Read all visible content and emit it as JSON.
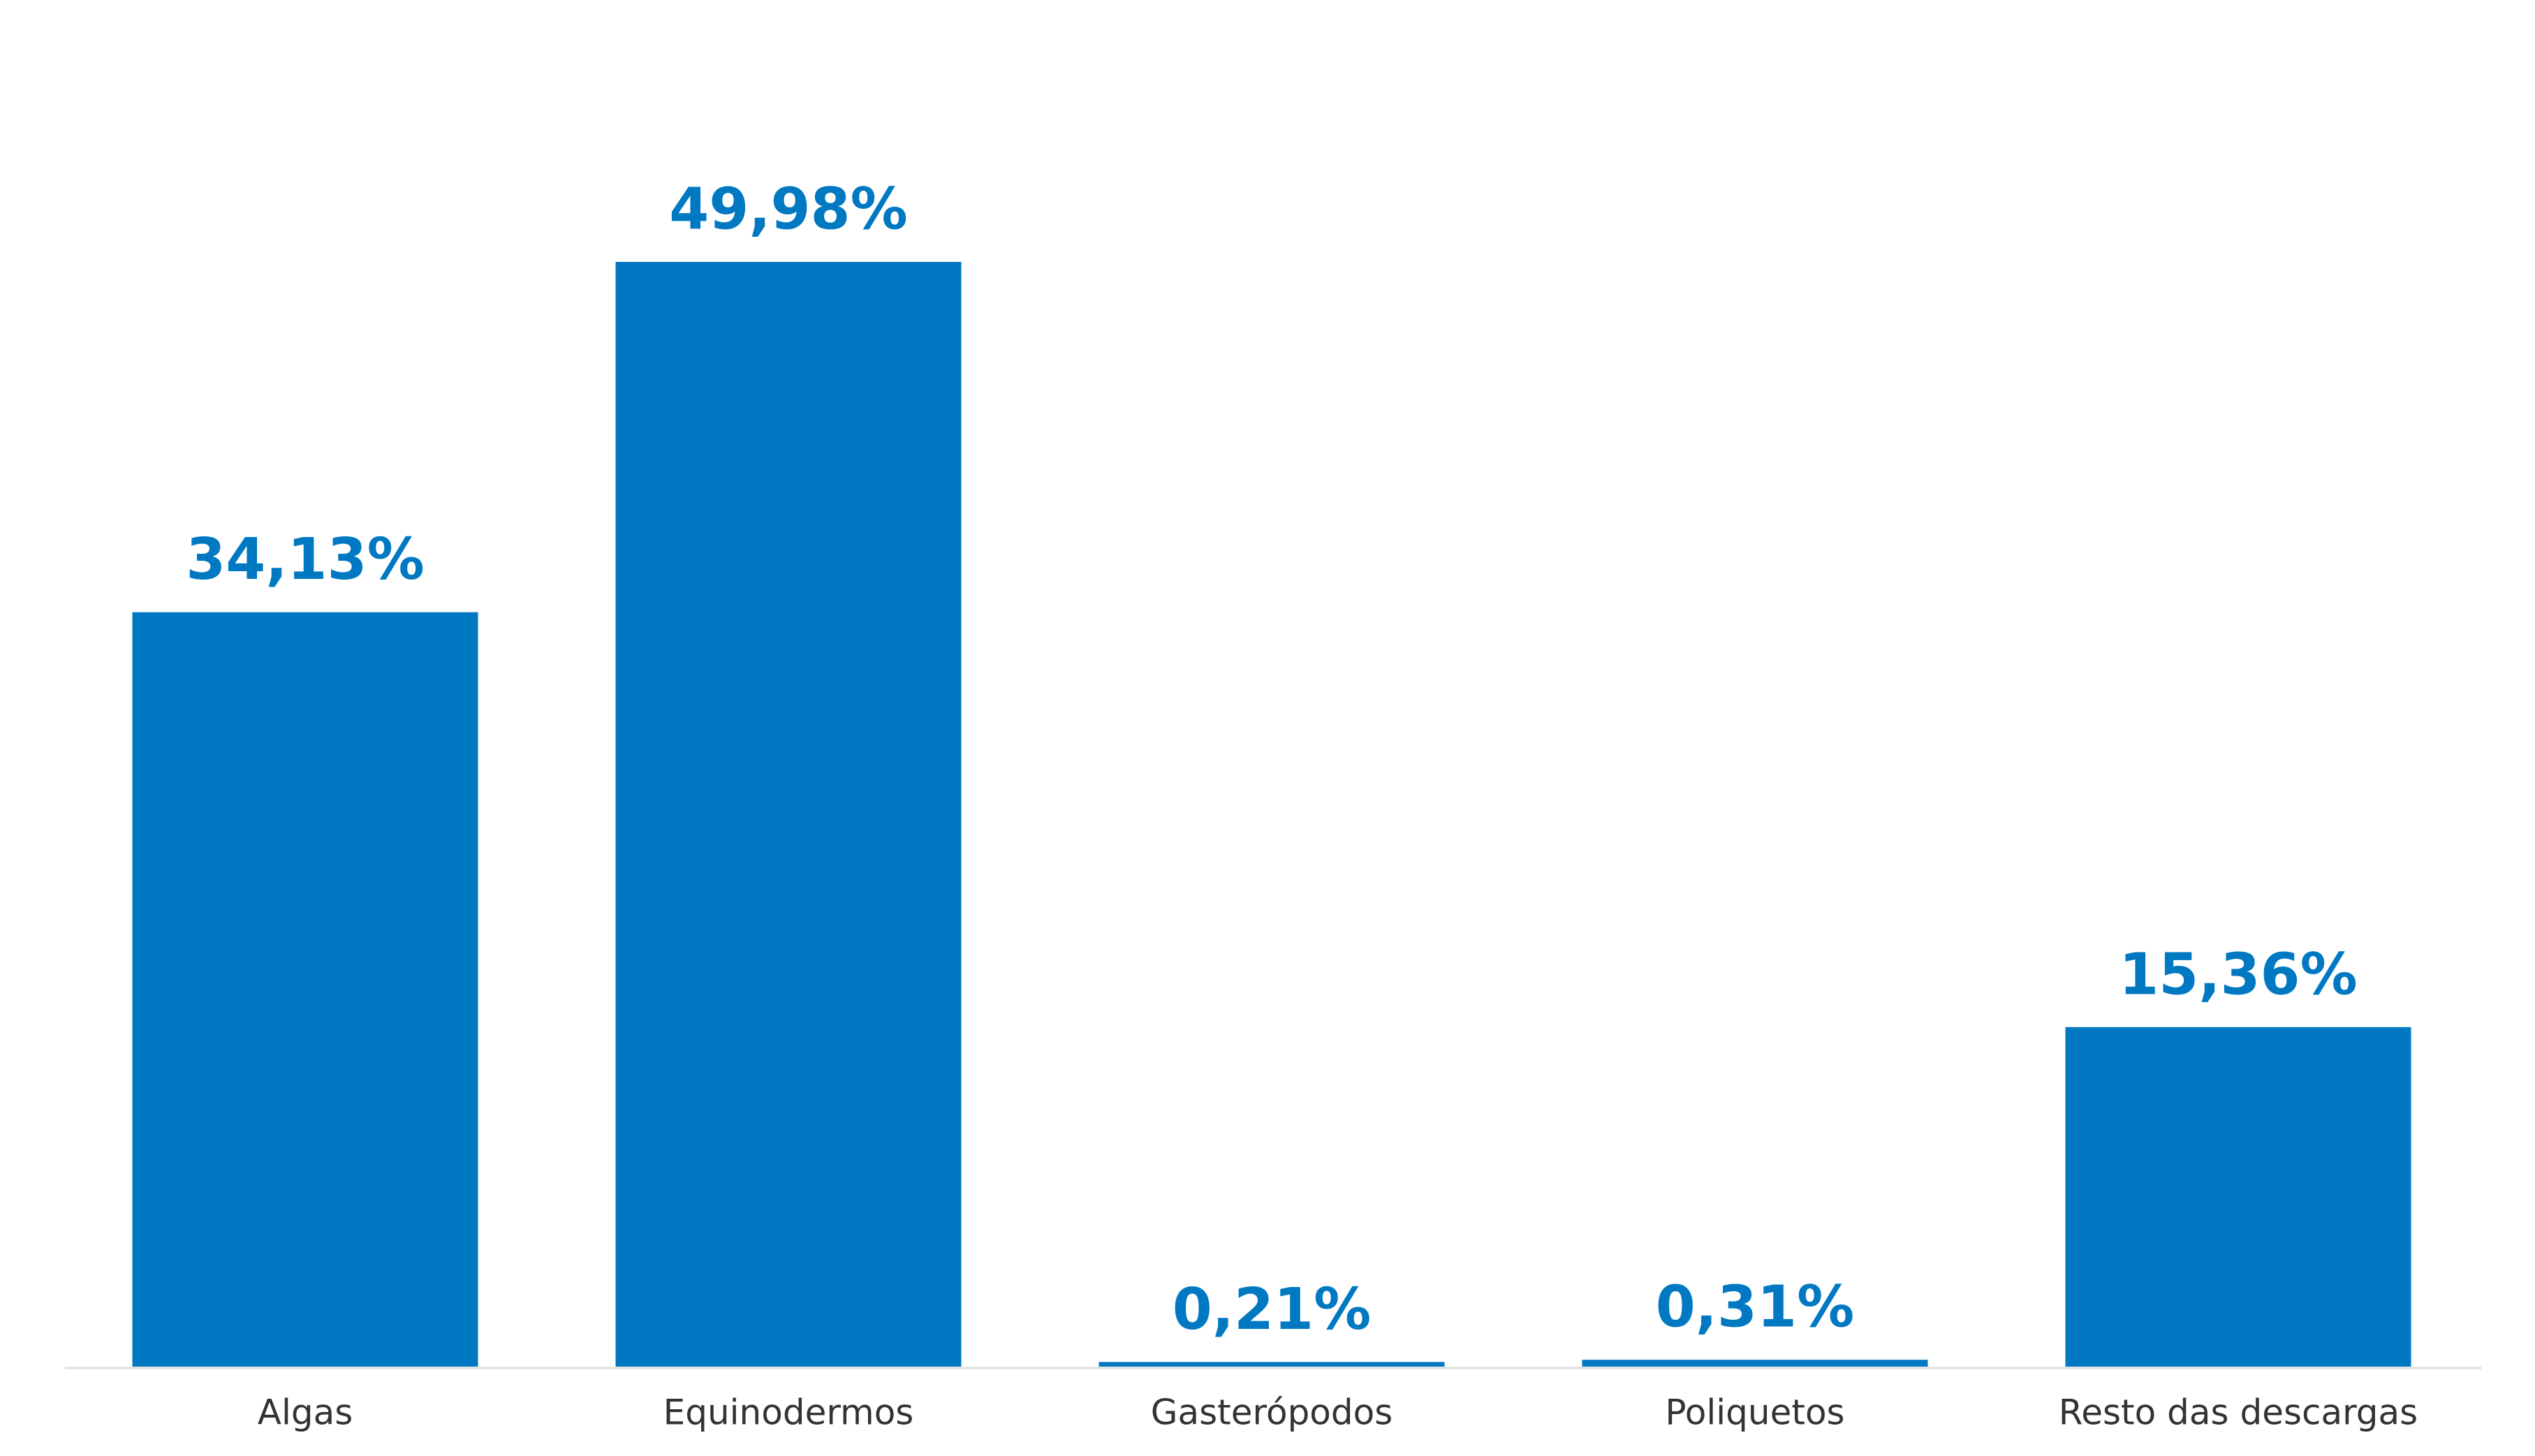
{
  "chart_data": {
    "type": "bar",
    "categories": [
      "Algas",
      "Equinodermos",
      "Gasterópodos",
      "Poliquetos",
      "Resto das descargas"
    ],
    "values": [
      34.13,
      49.98,
      0.21,
      0.31,
      15.36
    ],
    "value_labels": [
      "34,13%",
      "49,98%",
      "0,21%",
      "0,31%",
      "15,36%"
    ],
    "color": "#0079c2"
  }
}
